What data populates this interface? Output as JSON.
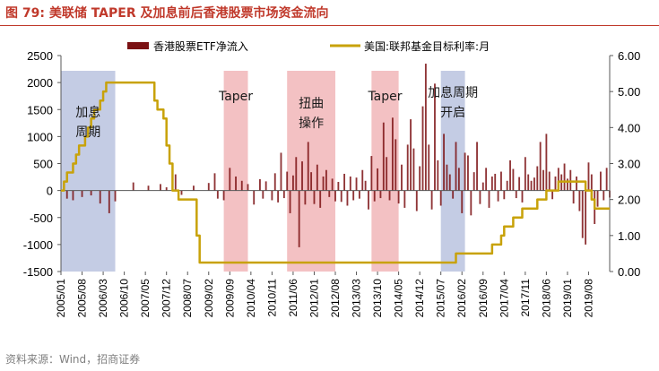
{
  "title": "图 79:  美联储 TAPER 及加息前后香港股票市场资金流向",
  "source": "资料来源：Wind，招商证券",
  "colors": {
    "bars": "#7b1113",
    "line": "#c8a20a",
    "blue": "#c4cce4",
    "pink": "#f3c1c3",
    "title": "#c0392b"
  },
  "chart_data": {
    "type": "bar+line",
    "legend": [
      "香港股票ETF净流入",
      "美国:联邦基金目标利率:月"
    ],
    "y_left": {
      "min": -1500,
      "max": 2500,
      "ticks": [
        "2500",
        "2000",
        "1500",
        "1000",
        "500",
        "0",
        "-500",
        "-1000",
        "-1500"
      ]
    },
    "y_right": {
      "min": 0,
      "max": 6,
      "ticks": [
        "6.00",
        "5.00",
        "4.00",
        "3.00",
        "2.00",
        "1.00",
        "0.00"
      ]
    },
    "x_ticks": [
      "2005/01",
      "2005/08",
      "2006/03",
      "2006/10",
      "2007/05",
      "2007/12",
      "2008/07",
      "2009/02",
      "2009/09",
      "2010/04",
      "2010/11",
      "2011/06",
      "2012/01",
      "2012/08",
      "2013/03",
      "2013/10",
      "2014/05",
      "2014/12",
      "2015/07",
      "2016/02",
      "2016/09",
      "2017/04",
      "2017/11",
      "2018/06",
      "2019/01",
      "2019/08"
    ],
    "shaded_regions": [
      {
        "label_lines": [
          "加息",
          "周期"
        ],
        "start": 0,
        "end": 18,
        "color": "blue"
      },
      {
        "label_lines": [
          "Taper"
        ],
        "start": 54,
        "end": 62,
        "color": "pink"
      },
      {
        "label_lines": [
          "扭曲",
          "操作"
        ],
        "start": 75,
        "end": 91,
        "color": "pink"
      },
      {
        "label_lines": [
          "Taper"
        ],
        "start": 103,
        "end": 112,
        "color": "pink"
      },
      {
        "label_lines": [
          "加息周期",
          "开启"
        ],
        "start": 126,
        "end": 134,
        "color": "blue"
      }
    ],
    "rate_series": [
      {
        "m": 0,
        "v": 2.25
      },
      {
        "m": 1,
        "v": 2.5
      },
      {
        "m": 2,
        "v": 2.75
      },
      {
        "m": 4,
        "v": 3.0
      },
      {
        "m": 5,
        "v": 3.25
      },
      {
        "m": 6,
        "v": 3.5
      },
      {
        "m": 8,
        "v": 3.75
      },
      {
        "m": 9,
        "v": 4.0
      },
      {
        "m": 10,
        "v": 4.25
      },
      {
        "m": 11,
        "v": 4.5
      },
      {
        "m": 13,
        "v": 4.75
      },
      {
        "m": 14,
        "v": 5.0
      },
      {
        "m": 15,
        "v": 5.25
      },
      {
        "m": 31,
        "v": 4.75
      },
      {
        "m": 32,
        "v": 4.5
      },
      {
        "m": 34,
        "v": 4.25
      },
      {
        "m": 35,
        "v": 3.5
      },
      {
        "m": 36,
        "v": 3.0
      },
      {
        "m": 37,
        "v": 2.25
      },
      {
        "m": 39,
        "v": 2.0
      },
      {
        "m": 45,
        "v": 1.0
      },
      {
        "m": 46,
        "v": 0.25
      },
      {
        "m": 131,
        "v": 0.5
      },
      {
        "m": 143,
        "v": 0.75
      },
      {
        "m": 146,
        "v": 1.0
      },
      {
        "m": 147,
        "v": 1.25
      },
      {
        "m": 150,
        "v": 1.5
      },
      {
        "m": 153,
        "v": 1.75
      },
      {
        "m": 158,
        "v": 2.0
      },
      {
        "m": 161,
        "v": 2.25
      },
      {
        "m": 165,
        "v": 2.5
      },
      {
        "m": 174,
        "v": 2.25
      },
      {
        "m": 176,
        "v": 2.0
      },
      {
        "m": 177,
        "v": 1.75
      },
      {
        "m": 182,
        "v": 1.75
      }
    ],
    "etf_flows": [
      {
        "m": 2,
        "v": -150
      },
      {
        "m": 4,
        "v": -180
      },
      {
        "m": 7,
        "v": -120
      },
      {
        "m": 10,
        "v": -90
      },
      {
        "m": 13,
        "v": -240
      },
      {
        "m": 16,
        "v": -420
      },
      {
        "m": 18,
        "v": -200
      },
      {
        "m": 24,
        "v": 150
      },
      {
        "m": 29,
        "v": 90
      },
      {
        "m": 33,
        "v": 120
      },
      {
        "m": 35,
        "v": 60
      },
      {
        "m": 38,
        "v": 300
      },
      {
        "m": 40,
        "v": -80
      },
      {
        "m": 44,
        "v": 90
      },
      {
        "m": 49,
        "v": 140
      },
      {
        "m": 51,
        "v": 320
      },
      {
        "m": 52,
        "v": -150
      },
      {
        "m": 54,
        "v": -180
      },
      {
        "m": 56,
        "v": 420
      },
      {
        "m": 58,
        "v": 260
      },
      {
        "m": 60,
        "v": 180
      },
      {
        "m": 62,
        "v": 120
      },
      {
        "m": 64,
        "v": -260
      },
      {
        "m": 66,
        "v": 210
      },
      {
        "m": 67,
        "v": -150
      },
      {
        "m": 68,
        "v": 170
      },
      {
        "m": 70,
        "v": -180
      },
      {
        "m": 71,
        "v": 320
      },
      {
        "m": 72,
        "v": -220
      },
      {
        "m": 73,
        "v": 700
      },
      {
        "m": 74,
        "v": -140
      },
      {
        "m": 75,
        "v": 350
      },
      {
        "m": 76,
        "v": -420
      },
      {
        "m": 77,
        "v": 280
      },
      {
        "m": 78,
        "v": 620
      },
      {
        "m": 79,
        "v": -1050
      },
      {
        "m": 80,
        "v": 540
      },
      {
        "m": 81,
        "v": -260
      },
      {
        "m": 82,
        "v": 900
      },
      {
        "m": 83,
        "v": 340
      },
      {
        "m": 84,
        "v": -250
      },
      {
        "m": 85,
        "v": 480
      },
      {
        "m": 86,
        "v": -320
      },
      {
        "m": 87,
        "v": 260
      },
      {
        "m": 88,
        "v": 380
      },
      {
        "m": 89,
        "v": -120
      },
      {
        "m": 90,
        "v": 220
      },
      {
        "m": 91,
        "v": -200
      },
      {
        "m": 92,
        "v": 160
      },
      {
        "m": 93,
        "v": -210
      },
      {
        "m": 94,
        "v": 310
      },
      {
        "m": 95,
        "v": -280
      },
      {
        "m": 96,
        "v": 260
      },
      {
        "m": 97,
        "v": -180
      },
      {
        "m": 98,
        "v": 240
      },
      {
        "m": 99,
        "v": -150
      },
      {
        "m": 100,
        "v": 380
      },
      {
        "m": 101,
        "v": 180
      },
      {
        "m": 102,
        "v": -350
      },
      {
        "m": 103,
        "v": 640
      },
      {
        "m": 104,
        "v": -200
      },
      {
        "m": 105,
        "v": 410
      },
      {
        "m": 106,
        "v": -140
      },
      {
        "m": 107,
        "v": 1260
      },
      {
        "m": 108,
        "v": 620
      },
      {
        "m": 109,
        "v": -180
      },
      {
        "m": 110,
        "v": 1350
      },
      {
        "m": 111,
        "v": 950
      },
      {
        "m": 112,
        "v": -240
      },
      {
        "m": 113,
        "v": 480
      },
      {
        "m": 114,
        "v": -320
      },
      {
        "m": 115,
        "v": 850
      },
      {
        "m": 116,
        "v": 1320
      },
      {
        "m": 117,
        "v": 780
      },
      {
        "m": 118,
        "v": -380
      },
      {
        "m": 119,
        "v": 450
      },
      {
        "m": 120,
        "v": 1560
      },
      {
        "m": 121,
        "v": 2350
      },
      {
        "m": 122,
        "v": 850
      },
      {
        "m": 123,
        "v": -350
      },
      {
        "m": 124,
        "v": 1980
      },
      {
        "m": 125,
        "v": 560
      },
      {
        "m": 126,
        "v": -280
      },
      {
        "m": 127,
        "v": 1050
      },
      {
        "m": 128,
        "v": 480
      },
      {
        "m": 129,
        "v": 300
      },
      {
        "m": 130,
        "v": -150
      },
      {
        "m": 131,
        "v": 900
      },
      {
        "m": 132,
        "v": 420
      },
      {
        "m": 133,
        "v": -420
      },
      {
        "m": 134,
        "v": 700
      },
      {
        "m": 135,
        "v": 650
      },
      {
        "m": 136,
        "v": -460
      },
      {
        "m": 137,
        "v": 340
      },
      {
        "m": 138,
        "v": 900
      },
      {
        "m": 139,
        "v": -250
      },
      {
        "m": 140,
        "v": 150
      },
      {
        "m": 141,
        "v": 420
      },
      {
        "m": 142,
        "v": -320
      },
      {
        "m": 143,
        "v": 260
      },
      {
        "m": 144,
        "v": 310
      },
      {
        "m": 145,
        "v": -200
      },
      {
        "m": 146,
        "v": 350
      },
      {
        "m": 147,
        "v": -160
      },
      {
        "m": 148,
        "v": 180
      },
      {
        "m": 149,
        "v": 560
      },
      {
        "m": 150,
        "v": 400
      },
      {
        "m": 151,
        "v": -140
      },
      {
        "m": 152,
        "v": 250
      },
      {
        "m": 153,
        "v": -220
      },
      {
        "m": 154,
        "v": 620
      },
      {
        "m": 155,
        "v": 300
      },
      {
        "m": 156,
        "v": 180
      },
      {
        "m": 157,
        "v": 240
      },
      {
        "m": 158,
        "v": 450
      },
      {
        "m": 159,
        "v": 900
      },
      {
        "m": 160,
        "v": 380
      },
      {
        "m": 161,
        "v": 1050
      },
      {
        "m": 162,
        "v": 350
      },
      {
        "m": 163,
        "v": -160
      },
      {
        "m": 164,
        "v": 260
      },
      {
        "m": 165,
        "v": 420
      },
      {
        "m": 166,
        "v": 300
      },
      {
        "m": 167,
        "v": 500
      },
      {
        "m": 168,
        "v": 220
      },
      {
        "m": 169,
        "v": 380
      },
      {
        "m": 170,
        "v": -240
      },
      {
        "m": 171,
        "v": 260
      },
      {
        "m": 172,
        "v": -380
      },
      {
        "m": 173,
        "v": -880
      },
      {
        "m": 174,
        "v": -1000
      },
      {
        "m": 175,
        "v": 520
      },
      {
        "m": 176,
        "v": 300
      },
      {
        "m": 177,
        "v": -620
      },
      {
        "m": 178,
        "v": -300
      },
      {
        "m": 179,
        "v": 350
      },
      {
        "m": 180,
        "v": -180
      },
      {
        "m": 181,
        "v": 420
      },
      {
        "m": 182,
        "v": -130
      }
    ]
  }
}
